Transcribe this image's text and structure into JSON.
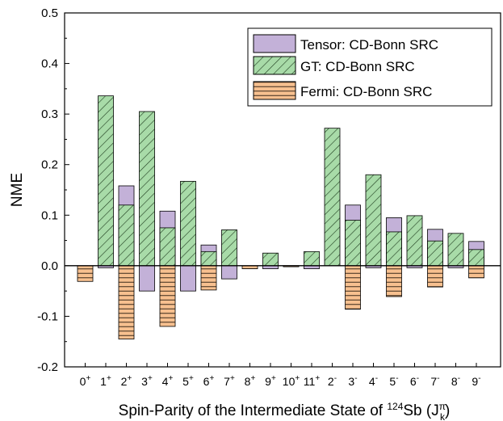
{
  "chart_data": {
    "type": "bar",
    "stacked": "overlaid",
    "ylabel": "NME",
    "xlabel": {
      "before": "Spin-Parity of the Intermediate State of ",
      "mass_number": "124",
      "element": "Sb",
      "paren_open": " (J",
      "sym_pi": "π",
      "sym_k": "k",
      "paren_close": ")"
    },
    "ylim": [
      -0.2,
      0.5
    ],
    "yticks": [
      "-0.2",
      "-0.1",
      "0.0",
      "0.1",
      "0.2",
      "0.3",
      "0.4",
      "0.5"
    ],
    "ytick_values": [
      -0.2,
      -0.1,
      0.0,
      0.1,
      0.2,
      0.3,
      0.4,
      0.5
    ],
    "categories": [
      {
        "j": "0",
        "p": "+"
      },
      {
        "j": "1",
        "p": "+"
      },
      {
        "j": "2",
        "p": "+"
      },
      {
        "j": "3",
        "p": "+"
      },
      {
        "j": "4",
        "p": "+"
      },
      {
        "j": "5",
        "p": "+"
      },
      {
        "j": "6",
        "p": "+"
      },
      {
        "j": "7",
        "p": "+"
      },
      {
        "j": "8",
        "p": "+"
      },
      {
        "j": "9",
        "p": "+"
      },
      {
        "j": "10",
        "p": "+"
      },
      {
        "j": "11",
        "p": "+"
      },
      {
        "j": "2",
        "p": "-"
      },
      {
        "j": "3",
        "p": "-"
      },
      {
        "j": "4",
        "p": "-"
      },
      {
        "j": "5",
        "p": "-"
      },
      {
        "j": "6",
        "p": "-"
      },
      {
        "j": "7",
        "p": "-"
      },
      {
        "j": "8",
        "p": "-"
      },
      {
        "j": "9",
        "p": "-"
      }
    ],
    "series": [
      {
        "name": "Tensor: CD-Bonn SRC",
        "values": [
          0.0,
          -0.004,
          0.158,
          -0.05,
          0.108,
          -0.05,
          0.041,
          -0.026,
          0.0,
          -0.006,
          0.0,
          -0.006,
          0.0,
          0.12,
          -0.004,
          0.095,
          -0.004,
          0.072,
          -0.004,
          0.048
        ]
      },
      {
        "name": "GT: CD-Bonn SRC",
        "values": [
          0.0,
          0.336,
          0.12,
          0.305,
          0.075,
          0.167,
          0.028,
          0.071,
          0.0,
          0.025,
          -0.002,
          0.028,
          0.272,
          0.09,
          0.18,
          0.067,
          0.099,
          0.049,
          0.064,
          0.032
        ]
      },
      {
        "name": "Fermi: CD-Bonn SRC",
        "values": [
          -0.031,
          0.0,
          -0.145,
          0.0,
          -0.12,
          0.0,
          -0.048,
          0.0,
          -0.006,
          0.0,
          -0.002,
          0.0,
          0.0,
          -0.086,
          0.0,
          -0.061,
          0.0,
          -0.042,
          0.0,
          -0.024
        ]
      }
    ],
    "legend_position": "top-right",
    "colors": {
      "tensor": "#c3b1d8",
      "gt": "#a8dba8",
      "gt_hatch": "#1e3b1e",
      "fermi": "#f7c08f",
      "fermi_hatch": "#3a2a1a",
      "zero_line": "#000000"
    }
  }
}
